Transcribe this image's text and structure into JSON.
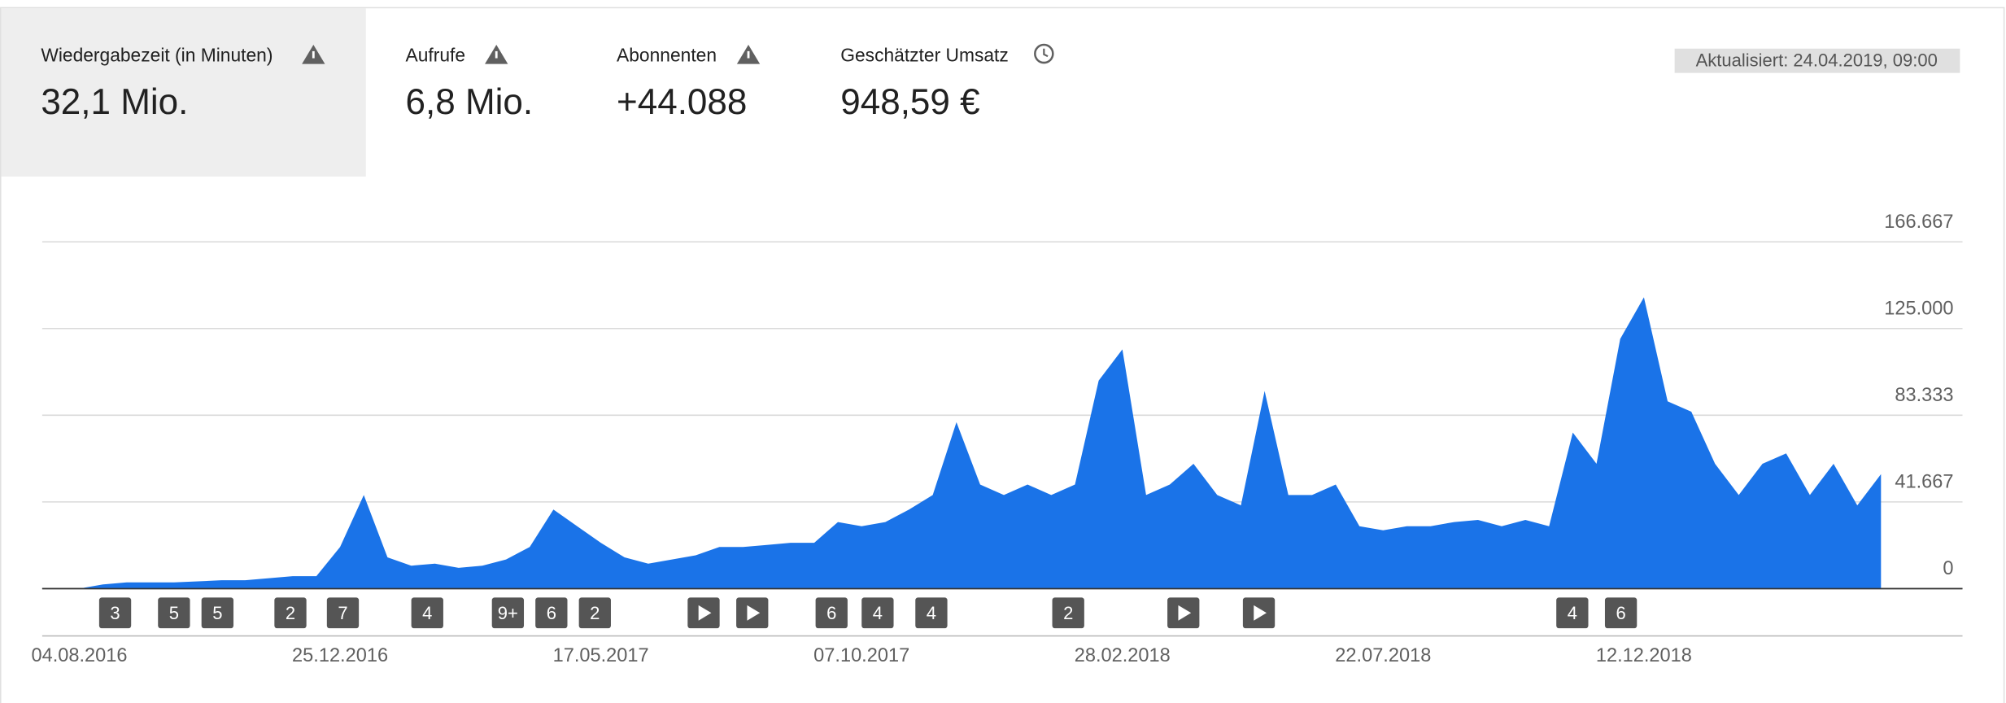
{
  "header": {
    "metrics": [
      {
        "label": "Wiedergabezeit (in Minuten)",
        "value": "32,1 Mio."
      },
      {
        "label": "Aufrufe",
        "value": "6,8 Mio."
      },
      {
        "label": "Abonnenten",
        "value": "+44.088"
      },
      {
        "label": "Geschätzter Umsatz",
        "value": "948,59 €"
      }
    ],
    "updated": "Aktualisiert: 24.04.2019, 09:00"
  },
  "chart_data": {
    "type": "area",
    "color": "#1a73e8",
    "grid": true,
    "categories": [
      "04.08.2016",
      null,
      null,
      null,
      null,
      null,
      null,
      null,
      null,
      null,
      null,
      "25.12.2016",
      null,
      null,
      null,
      null,
      null,
      null,
      null,
      null,
      null,
      null,
      "17.05.2017",
      null,
      null,
      null,
      null,
      null,
      null,
      null,
      null,
      null,
      null,
      "07.10.2017",
      null,
      null,
      null,
      null,
      null,
      null,
      null,
      null,
      null,
      null,
      "28.02.2018",
      null,
      null,
      null,
      null,
      null,
      null,
      null,
      null,
      null,
      null,
      "22.07.2018",
      null,
      null,
      null,
      null,
      null,
      null,
      null,
      null,
      null,
      null,
      "12.12.2018",
      null,
      null,
      null,
      null,
      null,
      null,
      null,
      null,
      null,
      null
    ],
    "values": [
      0,
      2000,
      3000,
      3000,
      3000,
      3500,
      4000,
      4000,
      5000,
      6000,
      6000,
      20000,
      45000,
      15000,
      11000,
      12000,
      10000,
      11000,
      14000,
      20000,
      38000,
      30000,
      22000,
      15000,
      12000,
      14000,
      16000,
      20000,
      20000,
      21000,
      22000,
      22000,
      32000,
      30000,
      32000,
      38000,
      45000,
      80000,
      50000,
      45000,
      50000,
      45000,
      50000,
      100000,
      115000,
      45000,
      50000,
      60000,
      45000,
      40000,
      95000,
      45000,
      45000,
      50000,
      30000,
      28000,
      30000,
      30000,
      32000,
      33000,
      30000,
      33000,
      30000,
      75000,
      60000,
      120000,
      140000,
      90000,
      85000,
      60000,
      45000,
      60000,
      65000,
      45000,
      60000,
      40000,
      55000
    ],
    "ylim": [
      0,
      166667
    ],
    "yticks": [
      0,
      {
        "value": 41667,
        "label": "41.667"
      },
      {
        "value": 83333,
        "label": "83.333"
      },
      {
        "value": 125000,
        "label": "125.000"
      },
      {
        "value": 166667,
        "label": "166.667"
      }
    ],
    "annotations": [
      "3",
      "5",
      "5",
      "2",
      "7",
      "4",
      "9+",
      "6",
      "2",
      "6",
      "4",
      "4",
      "2",
      "4",
      "6"
    ]
  }
}
